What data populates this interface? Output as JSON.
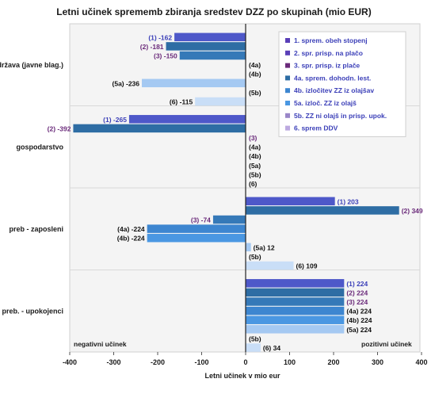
{
  "chart_data": {
    "type": "bar",
    "orientation": "horizontal",
    "title": "Letni učinek sprememb zbiranja sredstev DZZ po skupinah (mio EUR)",
    "xlabel": "Letni učinek v mio eur",
    "ylabel": "",
    "xlim": [
      -400,
      400
    ],
    "xticks": [
      "-400",
      "-300",
      "-200",
      "-100",
      "0",
      "100",
      "200",
      "300",
      "400"
    ],
    "grid": false,
    "legend_position": "top-right",
    "annotations": {
      "left": "negativni učinek",
      "right": "pozitivni učinek"
    },
    "categories": [
      "država (javne blag.)",
      "gospodarstvo",
      "preb - zaposleni",
      "preb. - upokojenci"
    ],
    "series": [
      {
        "name": "1. sprem. obeh stopenj",
        "code": "(1)",
        "color": "#4E58C9",
        "values": [
          -162,
          -265,
          203,
          224
        ]
      },
      {
        "name": "2. spr. prisp. na plačo",
        "code": "(2)",
        "color": "#2E6DA4",
        "values": [
          -181,
          -392,
          349,
          224
        ]
      },
      {
        "name": "3. spr. prisp. iz plače",
        "code": "(3)",
        "color": "#3579B8",
        "values": [
          -150,
          null,
          -74,
          224
        ]
      },
      {
        "name": "4a. sprem. dohodn. lest.",
        "code": "(4a)",
        "color": "#3D86D0",
        "values": [
          null,
          null,
          -224,
          224
        ]
      },
      {
        "name": "4b. izločitev ZZ iz olajšav",
        "code": "(4b)",
        "color": "#4A97E2",
        "values": [
          null,
          null,
          -224,
          224
        ]
      },
      {
        "name": "5a. izloč. ZZ iz olajš",
        "code": "(5a)",
        "color": "#A5C9F2",
        "values": [
          -236,
          null,
          12,
          224
        ]
      },
      {
        "name": "5b. ZZ ni olajš in prisp. upok.",
        "code": "(5b)",
        "color": "#A9CCEF",
        "values": [
          null,
          null,
          null,
          null
        ]
      },
      {
        "name": "6. sprem DDV",
        "code": "(6)",
        "color": "#C9DEF7",
        "values": [
          -115,
          null,
          109,
          34
        ]
      }
    ],
    "legend_swatch_colors": [
      "#5A3FB8",
      "#5A3FB8",
      "#6A2A7A",
      "#2E6DA4",
      "#3D86D0",
      "#4A97E2",
      "#9A86C8",
      "#BCA9E0"
    ]
  }
}
